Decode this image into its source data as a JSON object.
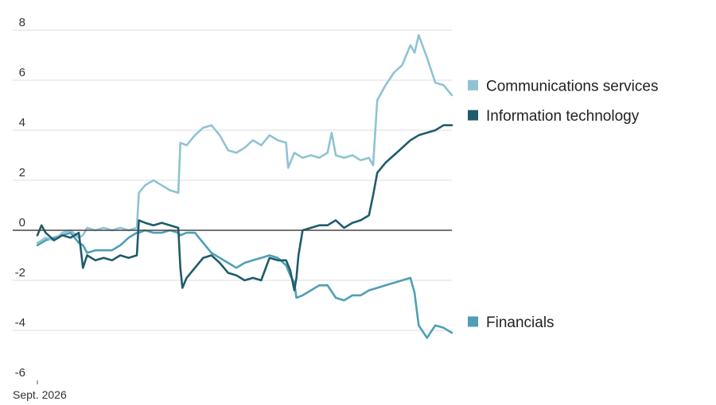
{
  "chart_data": {
    "type": "line",
    "title": "",
    "xlabel": "",
    "ylabel": "",
    "ylim": [
      -6,
      8
    ],
    "yticks": [
      8,
      6,
      4,
      2,
      0,
      -2,
      -4,
      -6
    ],
    "x_ticks": [
      {
        "label": "Sept. 2026",
        "x": 0
      }
    ],
    "xlim": [
      0,
      100
    ],
    "grid": true,
    "legend_placement": "right, labels beside line ends",
    "colors": {
      "comm": "#8fc3d3",
      "it": "#1f5c6b",
      "fin": "#4e9fb5",
      "grid": "#dddddd",
      "zero": "#444444"
    },
    "series": [
      {
        "key": "comm",
        "name": "Communications services",
        "x": [
          0,
          2,
          4,
          6,
          8,
          10,
          11,
          12,
          14,
          16,
          18,
          20,
          22,
          24,
          24.5,
          26,
          28,
          30,
          32,
          34,
          34.5,
          36,
          38,
          40,
          42,
          44,
          46,
          48,
          50,
          52,
          54,
          56,
          58,
          60,
          60.5,
          62,
          64,
          66,
          68,
          70,
          71,
          72,
          74,
          76,
          78,
          80,
          81,
          82,
          84,
          86,
          88,
          90,
          91,
          92,
          94,
          96,
          98,
          100
        ],
        "y": [
          -0.5,
          -0.3,
          -0.4,
          -0.1,
          0,
          -0.3,
          -0.2,
          0.1,
          0,
          0.1,
          0,
          0.1,
          0,
          0.1,
          1.5,
          1.8,
          2.0,
          1.8,
          1.6,
          1.5,
          3.5,
          3.4,
          3.8,
          4.1,
          4.2,
          3.8,
          3.2,
          3.1,
          3.3,
          3.6,
          3.4,
          3.8,
          3.6,
          3.5,
          2.5,
          3.1,
          2.9,
          3.0,
          2.9,
          3.1,
          3.9,
          3.0,
          2.9,
          3.0,
          2.8,
          2.9,
          2.6,
          5.2,
          5.8,
          6.3,
          6.6,
          7.4,
          7.1,
          7.8,
          6.9,
          5.9,
          5.8,
          5.4
        ]
      },
      {
        "key": "it",
        "name": "Information technology",
        "x": [
          0,
          1,
          2,
          4,
          6,
          8,
          10,
          11,
          12,
          14,
          16,
          18,
          20,
          22,
          24,
          24.5,
          26,
          28,
          30,
          32,
          34,
          34.5,
          35,
          36,
          38,
          40,
          42,
          44,
          46,
          48,
          50,
          52,
          54,
          56,
          58,
          60,
          61,
          62,
          62.5,
          63,
          64,
          66,
          68,
          70,
          72,
          74,
          76,
          78,
          80,
          81,
          82,
          84,
          86,
          88,
          90,
          92,
          94,
          96,
          98,
          100
        ],
        "y": [
          -0.2,
          0.2,
          -0.1,
          -0.4,
          -0.2,
          -0.3,
          -0.1,
          -1.5,
          -1.0,
          -1.2,
          -1.1,
          -1.2,
          -1.0,
          -1.1,
          -1.0,
          0.4,
          0.3,
          0.2,
          0.3,
          0.2,
          0.1,
          -1.5,
          -2.3,
          -1.9,
          -1.5,
          -1.1,
          -1.0,
          -1.3,
          -1.7,
          -1.8,
          -2.0,
          -1.9,
          -2.0,
          -1.1,
          -1.2,
          -1.2,
          -1.6,
          -2.4,
          -1.9,
          -1.0,
          0.0,
          0.1,
          0.2,
          0.2,
          0.4,
          0.1,
          0.3,
          0.4,
          0.6,
          1.4,
          2.3,
          2.7,
          3.0,
          3.3,
          3.6,
          3.8,
          3.9,
          4.0,
          4.2,
          4.2
        ]
      },
      {
        "key": "fin",
        "name": "Financials",
        "x": [
          0,
          2,
          4,
          6,
          8,
          10,
          11,
          12,
          14,
          16,
          18,
          20,
          22,
          24,
          24.5,
          26,
          28,
          30,
          32,
          34,
          34.5,
          36,
          38,
          40,
          42,
          44,
          46,
          48,
          50,
          52,
          54,
          56,
          58,
          60,
          61,
          62,
          62.5,
          64,
          66,
          68,
          70,
          72,
          74,
          76,
          78,
          80,
          82,
          84,
          86,
          88,
          90,
          91,
          92,
          94,
          96,
          98,
          100
        ],
        "y": [
          -0.6,
          -0.4,
          -0.3,
          -0.2,
          -0.1,
          -0.5,
          -0.6,
          -0.9,
          -0.8,
          -0.8,
          -0.8,
          -0.6,
          -0.3,
          -0.1,
          -0.1,
          0.0,
          -0.1,
          -0.1,
          0.0,
          -0.1,
          -0.2,
          -0.1,
          -0.1,
          -0.5,
          -0.9,
          -1.1,
          -1.3,
          -1.5,
          -1.3,
          -1.2,
          -1.1,
          -1.0,
          -1.1,
          -1.4,
          -1.8,
          -2.1,
          -2.7,
          -2.6,
          -2.4,
          -2.2,
          -2.2,
          -2.7,
          -2.8,
          -2.6,
          -2.6,
          -2.4,
          -2.3,
          -2.2,
          -2.1,
          -2.0,
          -1.9,
          -2.5,
          -3.8,
          -4.3,
          -3.8,
          -3.9,
          -4.1
        ]
      }
    ],
    "legend": [
      {
        "key": "comm",
        "label": "Communications services",
        "anchor_y": 5.8
      },
      {
        "key": "it",
        "label": "Information technology",
        "anchor_y": 4.6
      },
      {
        "key": "fin",
        "label": "Financials",
        "anchor_y": -3.65
      }
    ]
  }
}
